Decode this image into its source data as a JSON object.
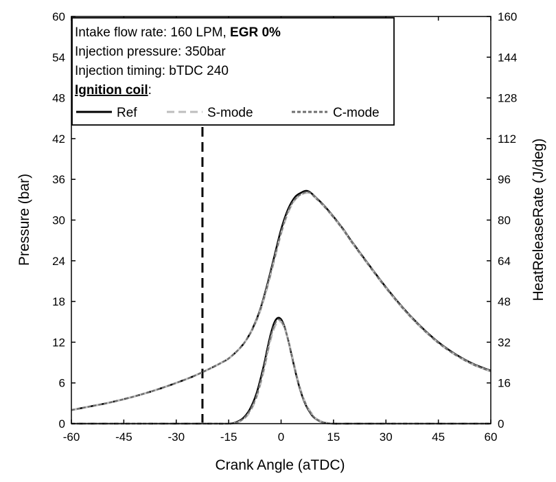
{
  "chart_data": {
    "type": "line",
    "xlabel": "Crank Angle (aTDC)",
    "ylabel": "Pressure (bar)",
    "y2label": "HeatReleaseRate (J/deg)",
    "xlim": [
      -60,
      60
    ],
    "ylim": [
      0,
      60
    ],
    "y2lim": [
      0,
      160
    ],
    "x_ticks": [
      "-60",
      "-45",
      "-30",
      "-15",
      "0",
      "15",
      "30",
      "45",
      "60"
    ],
    "y_ticks": [
      "0",
      "6",
      "12",
      "18",
      "24",
      "30",
      "36",
      "42",
      "48",
      "54",
      "60"
    ],
    "y2_ticks": [
      "0",
      "16",
      "32",
      "48",
      "64",
      "80",
      "96",
      "112",
      "128",
      "144",
      "160"
    ],
    "reference_line": {
      "x": -22.5,
      "style": "dashed",
      "color": "#000000"
    },
    "info_box": {
      "line1_prefix": "Intake flow rate: 160 LPM, ",
      "line1_bold": "EGR 0%",
      "line2": "Injection pressure: 350bar",
      "line3": "Injection timing: bTDC 240",
      "line4_underlined": "Ignition coil",
      "line4_suffix": ":"
    },
    "legend": [
      {
        "label": "Ref",
        "color": "#000000",
        "dash": "solid"
      },
      {
        "label": "S-mode",
        "color": "#bdbdbd",
        "dash": "long-dash"
      },
      {
        "label": "C-mode",
        "color": "#6e6e6e",
        "dash": "short-dash"
      }
    ],
    "pressure": {
      "axis": "left",
      "x": [
        -60,
        -55,
        -50,
        -45,
        -40,
        -35,
        -30,
        -25,
        -20,
        -17,
        -15,
        -12,
        -10,
        -8,
        -6,
        -4,
        -2,
        0,
        2,
        4,
        6,
        7,
        8,
        9,
        10,
        12,
        15,
        18,
        20,
        25,
        30,
        35,
        40,
        45,
        50,
        55,
        60
      ],
      "series": [
        {
          "name": "Ref",
          "values": [
            2.0,
            2.5,
            3.0,
            3.6,
            4.3,
            5.1,
            6.0,
            7.0,
            8.2,
            9.0,
            9.6,
            11.0,
            12.3,
            14.2,
            16.8,
            20.4,
            24.5,
            28.6,
            31.6,
            33.4,
            34.1,
            34.3,
            34.2,
            33.8,
            33.3,
            32.3,
            30.5,
            28.5,
            27.0,
            23.5,
            20.1,
            17.0,
            14.3,
            12.0,
            10.2,
            8.8,
            7.8
          ]
        },
        {
          "name": "S-mode",
          "values": [
            2.0,
            2.5,
            3.0,
            3.6,
            4.3,
            5.1,
            6.0,
            7.0,
            8.2,
            9.0,
            9.6,
            11.0,
            12.3,
            14.1,
            16.6,
            20.0,
            24.0,
            28.0,
            31.1,
            33.0,
            33.8,
            34.0,
            34.0,
            33.7,
            33.2,
            32.2,
            30.4,
            28.4,
            26.9,
            23.4,
            20.0,
            16.9,
            14.2,
            11.9,
            10.1,
            8.7,
            7.7
          ]
        },
        {
          "name": "C-mode",
          "values": [
            2.0,
            2.5,
            3.0,
            3.6,
            4.3,
            5.1,
            6.0,
            7.0,
            8.2,
            9.0,
            9.6,
            11.0,
            12.3,
            14.1,
            16.7,
            20.2,
            24.2,
            28.2,
            31.3,
            33.1,
            33.9,
            34.1,
            34.1,
            33.7,
            33.2,
            32.2,
            30.4,
            28.4,
            26.9,
            23.4,
            20.0,
            16.9,
            14.2,
            11.9,
            10.1,
            8.7,
            7.7
          ]
        }
      ]
    },
    "heat_release": {
      "axis": "right",
      "x": [
        -60,
        -20,
        -15,
        -13,
        -11,
        -9,
        -7,
        -5,
        -4,
        -3,
        -2,
        -1,
        0,
        1,
        2,
        3,
        4,
        5,
        6,
        7,
        8,
        9,
        10,
        11,
        12,
        13,
        15,
        20,
        30,
        60
      ],
      "series": [
        {
          "name": "Ref",
          "values": [
            0,
            0,
            0,
            0.5,
            2,
            5.5,
            12,
            22.5,
            29,
            35,
            39.5,
            41.5,
            41,
            38,
            33,
            27,
            21,
            15.5,
            11,
            7.5,
            5,
            3,
            1.8,
            1,
            0.5,
            0.2,
            0,
            0,
            0,
            0
          ]
        },
        {
          "name": "S-mode",
          "values": [
            0,
            0,
            0,
            0.3,
            1.5,
            4.5,
            10.5,
            20.5,
            27,
            33,
            37.5,
            40,
            40,
            37.5,
            33,
            27.5,
            21.5,
            16,
            11.5,
            8,
            5.5,
            3.5,
            2,
            1.2,
            0.6,
            0.3,
            0,
            0,
            0,
            0
          ]
        },
        {
          "name": "C-mode",
          "values": [
            0,
            0,
            0,
            0.4,
            1.7,
            5,
            11,
            21.5,
            28,
            34,
            38.5,
            40.8,
            40.5,
            37.8,
            33,
            27.2,
            21.2,
            15.8,
            11.2,
            7.8,
            5.2,
            3.2,
            1.9,
            1.1,
            0.5,
            0.2,
            0,
            0,
            0,
            0
          ]
        }
      ]
    }
  }
}
